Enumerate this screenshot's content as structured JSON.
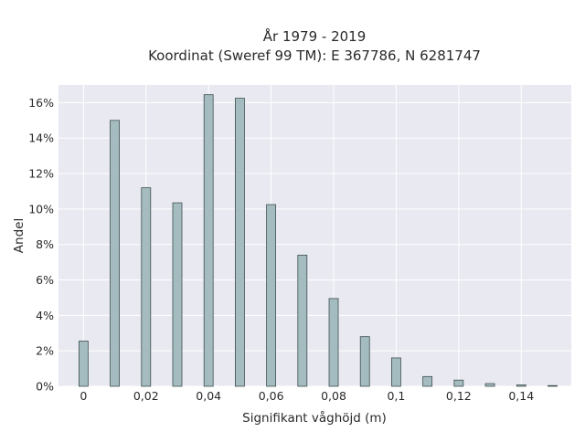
{
  "chart_data": {
    "type": "bar",
    "title": [
      "År 1979 - 2019",
      "Koordinat (Sweref 99 TM): E 367786, N 6281747"
    ],
    "xlabel": "Signifikant våghöjd (m)",
    "ylabel": "Andel",
    "x": [
      0,
      0.01,
      0.02,
      0.03,
      0.04,
      0.05,
      0.06,
      0.07,
      0.08,
      0.09,
      0.1,
      0.11,
      0.12,
      0.13,
      0.14,
      0.15
    ],
    "values": [
      2.55,
      15.0,
      11.2,
      10.35,
      16.45,
      16.25,
      10.25,
      7.4,
      4.95,
      2.8,
      1.6,
      0.55,
      0.35,
      0.15,
      0.08,
      0.04
    ],
    "xlim": [
      -0.008,
      0.156
    ],
    "ylim": [
      0,
      17
    ],
    "xticks": [
      0,
      0.02,
      0.04,
      0.06,
      0.08,
      0.1,
      0.12,
      0.14
    ],
    "xtick_labels": [
      "0",
      "0,02",
      "0,04",
      "0,06",
      "0,08",
      "0,1",
      "0,12",
      "0,14"
    ],
    "yticks": [
      0,
      2,
      4,
      6,
      8,
      10,
      12,
      14,
      16
    ],
    "ytick_labels": [
      "0%",
      "2%",
      "4%",
      "6%",
      "8%",
      "10%",
      "12%",
      "14%",
      "16%"
    ],
    "grid": true,
    "colors": {
      "bar_fill": "#a4bcbf",
      "bar_edge": "#3f4f51",
      "plot_bg": "#e9e9f1",
      "grid": "#ffffff"
    }
  }
}
